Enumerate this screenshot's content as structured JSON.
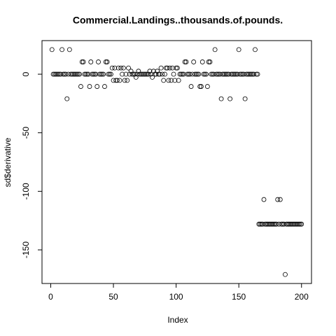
{
  "chart_data": {
    "type": "scatter",
    "title": "Commercial.Landings..thousands.of.pounds.",
    "x_label": "Index",
    "y_label": "sd$derivative",
    "x": [
      1,
      2,
      3,
      4,
      5,
      6,
      7,
      8,
      9,
      10,
      11,
      12,
      13,
      14,
      15,
      16,
      17,
      18,
      19,
      20,
      21,
      22,
      23,
      24,
      25,
      26,
      27,
      28,
      29,
      30,
      31,
      32,
      33,
      34,
      35,
      36,
      37,
      38,
      39,
      40,
      41,
      42,
      43,
      44,
      45,
      46,
      47,
      48,
      49,
      50,
      51,
      52,
      53,
      54,
      55,
      56,
      57,
      58,
      59,
      60,
      61,
      62,
      63,
      64,
      65,
      66,
      67,
      68,
      69,
      70,
      71,
      72,
      73,
      74,
      75,
      76,
      77,
      78,
      79,
      80,
      81,
      82,
      83,
      84,
      85,
      86,
      87,
      88,
      89,
      90,
      91,
      92,
      93,
      94,
      95,
      96,
      97,
      98,
      99,
      100,
      101,
      102,
      103,
      104,
      105,
      106,
      107,
      108,
      109,
      110,
      111,
      112,
      113,
      114,
      115,
      116,
      117,
      118,
      119,
      120,
      121,
      122,
      123,
      124,
      125,
      126,
      127,
      128,
      129,
      130,
      131,
      132,
      133,
      134,
      135,
      136,
      137,
      138,
      139,
      140,
      141,
      142,
      143,
      144,
      145,
      146,
      147,
      148,
      149,
      150,
      151,
      152,
      153,
      154,
      155,
      156,
      157,
      158,
      159,
      160,
      161,
      162,
      163,
      164,
      165,
      166,
      167,
      168,
      169,
      170,
      171,
      172,
      173,
      174,
      175,
      176,
      177,
      178,
      179,
      180,
      181,
      182,
      183,
      184,
      185,
      186,
      187,
      188,
      189,
      190,
      191,
      192,
      193,
      194,
      195,
      196,
      197,
      198,
      199,
      200
    ],
    "values": [
      21,
      0,
      0,
      0,
      0,
      0,
      0,
      0,
      21,
      0,
      0,
      0,
      -21,
      0,
      21,
      0,
      0,
      0,
      0,
      0,
      0,
      0,
      0,
      -10.5,
      10.5,
      10.5,
      0,
      0,
      0,
      0,
      -10.5,
      10.5,
      0,
      0,
      0,
      0,
      -10.5,
      10.5,
      0,
      0,
      0,
      0,
      -10.5,
      10.5,
      10.5,
      0,
      0,
      0,
      5.3,
      -5.3,
      5.3,
      -5.3,
      -5.3,
      5.3,
      -5.3,
      5.3,
      0,
      5.3,
      -5.3,
      0,
      -5.3,
      5.3,
      0,
      2.6,
      0,
      0,
      0,
      -2.6,
      0,
      2.6,
      0,
      0,
      0,
      0,
      0,
      0,
      0,
      0,
      2.6,
      0,
      -2.6,
      2.6,
      0,
      0,
      2.6,
      0,
      0,
      5.3,
      0,
      -5.3,
      0,
      5.3,
      5.3,
      -5.3,
      5.3,
      -5.3,
      5.3,
      0,
      -5.3,
      5.3,
      5.3,
      -5.3,
      0,
      0,
      0,
      0,
      10.5,
      10.5,
      0,
      0,
      0,
      -10.5,
      0,
      10.5,
      0,
      0,
      0,
      0,
      -10.5,
      -10.5,
      10.5,
      0,
      0,
      0,
      -10.5,
      10.5,
      10.5,
      0,
      0,
      0,
      21,
      0,
      0,
      0,
      0,
      -21,
      0,
      0,
      0,
      0,
      0,
      0,
      -21,
      0,
      0,
      0,
      0,
      0,
      0,
      21,
      0,
      0,
      0,
      0,
      -21,
      0,
      0,
      0,
      0,
      0,
      0,
      0,
      21,
      0,
      0,
      -128,
      -128,
      -128,
      -128,
      -107,
      -128,
      -128,
      -128,
      -128,
      -128,
      -128,
      -128,
      -128,
      -128,
      -128,
      -107,
      -128,
      -107,
      -128,
      -128,
      -128,
      -171,
      -128,
      -128,
      -128,
      -128,
      -128,
      -128,
      -128,
      -128,
      -128,
      -128,
      -128,
      -128,
      -128
    ],
    "color": "#000000",
    "xlim": [
      -6.96,
      207.96
    ],
    "ylim": [
      -178.7,
      28.7
    ],
    "xticks": [
      0,
      50,
      100,
      150,
      200
    ],
    "yticks": [
      -150,
      -100,
      -50,
      0
    ]
  }
}
